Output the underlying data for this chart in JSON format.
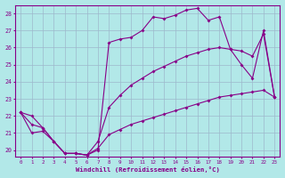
{
  "xlabel": "Windchill (Refroidissement éolien,°C)",
  "bg_color": "#b2e8e8",
  "grid_color": "#9db8cc",
  "line_color": "#880088",
  "xmin": 0,
  "xmax": 23,
  "ymin": 20,
  "ymax": 28,
  "line1_x": [
    0,
    1,
    2,
    3,
    4,
    5,
    6,
    7,
    8,
    9,
    10,
    11,
    12,
    13,
    14,
    15,
    16,
    17,
    18,
    19,
    20,
    21,
    22,
    23
  ],
  "line1_y": [
    22.2,
    22.0,
    21.3,
    20.5,
    19.8,
    19.8,
    19.7,
    20.0,
    26.3,
    26.5,
    26.6,
    27.0,
    27.8,
    27.7,
    27.9,
    28.2,
    28.3,
    27.6,
    27.8,
    25.9,
    25.0,
    24.2,
    27.0,
    23.1
  ],
  "line2_x": [
    0,
    1,
    2,
    3,
    4,
    5,
    6,
    7,
    8,
    9,
    10,
    11,
    12,
    13,
    14,
    15,
    16,
    17,
    18,
    19,
    20,
    21,
    22,
    23
  ],
  "line2_y": [
    22.2,
    21.5,
    21.3,
    20.5,
    19.8,
    19.8,
    19.7,
    20.5,
    22.5,
    23.2,
    23.8,
    24.2,
    24.6,
    24.9,
    25.2,
    25.5,
    25.7,
    25.9,
    26.0,
    25.9,
    25.8,
    25.5,
    26.8,
    23.1
  ],
  "line3_x": [
    0,
    1,
    2,
    3,
    4,
    5,
    6,
    7,
    8,
    9,
    10,
    11,
    12,
    13,
    14,
    15,
    16,
    17,
    18,
    19,
    20,
    21,
    22,
    23
  ],
  "line3_y": [
    22.2,
    21.0,
    21.1,
    20.5,
    19.8,
    19.8,
    19.7,
    20.1,
    20.9,
    21.2,
    21.5,
    21.7,
    21.9,
    22.1,
    22.3,
    22.5,
    22.7,
    22.9,
    23.1,
    23.2,
    23.3,
    23.4,
    23.5,
    23.1
  ]
}
